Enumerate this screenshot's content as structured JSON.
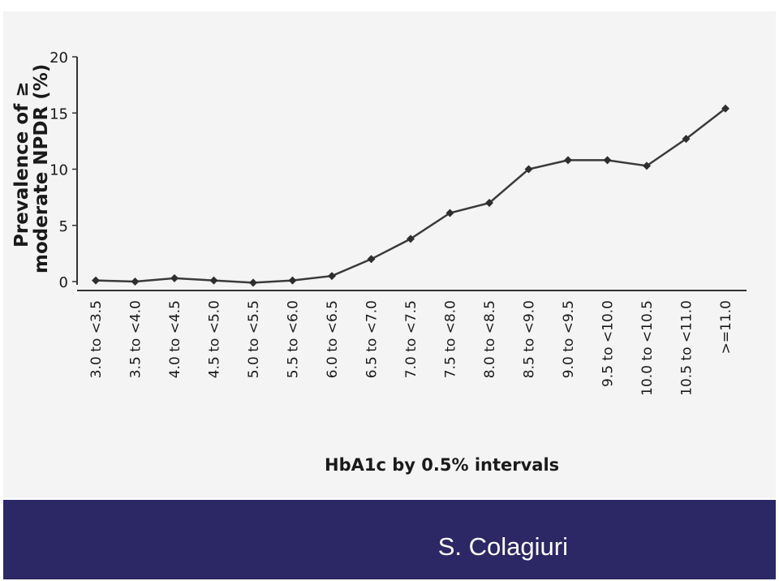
{
  "chart_data": {
    "type": "line",
    "title": "",
    "ylabel_line1": "Prevalence of ≥",
    "ylabel_line2": "moderate NPDR (%)",
    "xlabel": "HbA1c by 0.5% intervals",
    "ylim": [
      0,
      20
    ],
    "yticks": [
      "0",
      "5",
      "10",
      "15",
      "20"
    ],
    "categories": [
      "3.0 to <3.5",
      "3.5 to <4.0",
      "4.0 to <4.5",
      "4.5 to <5.0",
      "5.0 to <5.5",
      "5.5 to <6.0",
      "6.0 to <6.5",
      "6.5 to <7.0",
      "7.0 to <7.5",
      "7.5 to <8.0",
      "8.0 to <8.5",
      "8.5 to <9.0",
      "9.0 to <9.5",
      "9.5 to <10.0",
      "10.0 to <10.5",
      "10.5 to <11.0",
      ">=11.0"
    ],
    "values": [
      0.1,
      0.0,
      0.3,
      0.1,
      -0.1,
      0.1,
      0.5,
      2.0,
      3.8,
      6.1,
      7.0,
      10.0,
      10.8,
      10.8,
      10.3,
      12.7,
      15.4
    ],
    "grid": false,
    "legend": "none",
    "line_color": "#3a3a3a"
  },
  "footer": {
    "author": "S. Colagiuri",
    "band_color": "#2c2765"
  }
}
